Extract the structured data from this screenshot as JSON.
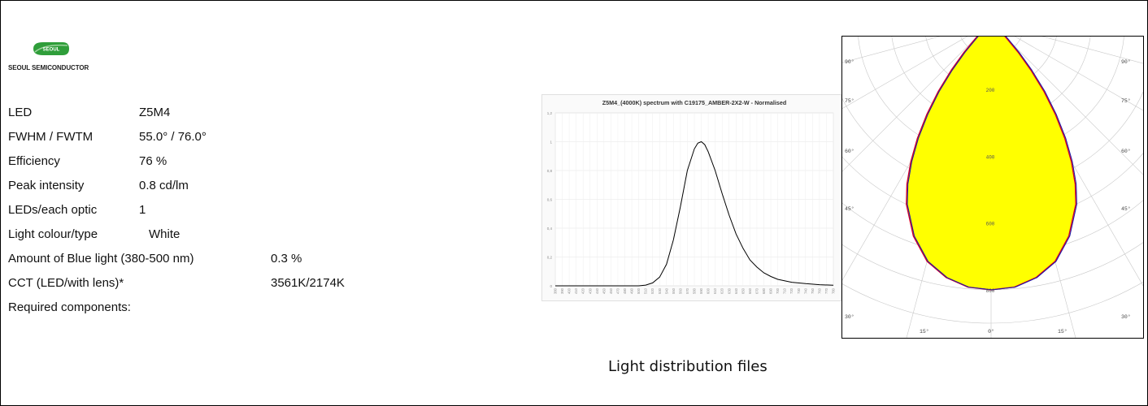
{
  "logo": {
    "badge": "SEOUL",
    "company": "SEOUL SEMICONDUCTOR",
    "color": "#2f9e3a"
  },
  "specs": [
    {
      "label": "LED",
      "value": "Z5M4"
    },
    {
      "label": "FWHM / FWTM",
      "value": "55.0° / 76.0°"
    },
    {
      "label": "Efficiency",
      "value": "76 %"
    },
    {
      "label": "Peak intensity",
      "value": "0.8 cd/lm"
    },
    {
      "label": "LEDs/each optic",
      "value": "1"
    },
    {
      "label": "Light colour/type",
      "value": "White"
    },
    {
      "label": "Amount of Blue light (380-500 nm)",
      "value": "0.3 %"
    },
    {
      "label": "CCT (LED/with lens)*",
      "value": "3561K/2174K"
    },
    {
      "label": "Required components:",
      "value": ""
    }
  ],
  "caption": "Light distribution files",
  "chart_data": [
    {
      "type": "line",
      "title": "Z5M4_(4000K) spectrum with C19175_AMBER-2X2-W - Normalised",
      "xlabel": "",
      "ylabel": "",
      "xlim": [
        380,
        780
      ],
      "ylim": [
        0,
        1.2
      ],
      "yticks": [
        "0",
        "0,2",
        "0,4",
        "0,6",
        "0,8",
        "1",
        "1,2"
      ],
      "xticks": [
        "380",
        "390",
        "400",
        "410",
        "420",
        "430",
        "440",
        "450",
        "460",
        "470",
        "480",
        "490",
        "500",
        "510",
        "520",
        "530",
        "540",
        "550",
        "560",
        "570",
        "580",
        "590",
        "600",
        "610",
        "620",
        "630",
        "640",
        "650",
        "660",
        "670",
        "680",
        "690",
        "700",
        "710",
        "720",
        "730",
        "740",
        "750",
        "760",
        "770",
        "780"
      ],
      "grid": true,
      "line_color": "#000000",
      "series": [
        {
          "x": [
            380,
            400,
            420,
            440,
            460,
            480,
            500,
            510,
            520,
            530,
            540,
            550,
            560,
            570,
            580,
            585,
            590,
            595,
            600,
            610,
            620,
            630,
            640,
            650,
            660,
            670,
            680,
            690,
            700,
            720,
            740,
            760,
            780
          ],
          "values": [
            0,
            0,
            0,
            0,
            0,
            0,
            0,
            0.005,
            0.02,
            0.06,
            0.15,
            0.32,
            0.55,
            0.8,
            0.95,
            0.99,
            1.0,
            0.98,
            0.93,
            0.8,
            0.64,
            0.49,
            0.36,
            0.26,
            0.18,
            0.13,
            0.09,
            0.065,
            0.045,
            0.025,
            0.015,
            0.008,
            0.004
          ]
        }
      ]
    },
    {
      "type": "polar",
      "title": "",
      "angle_labels": [
        "90°",
        "75°",
        "60°",
        "45°",
        "30°",
        "15°",
        "0°",
        "15°",
        "30°",
        "45°",
        "60°",
        "75°",
        "90°"
      ],
      "radial_ticks": [
        200,
        400,
        600,
        800
      ],
      "rmax": 900,
      "fill_color": "#ffff00",
      "outline_colors": [
        "#d4002a",
        "#1a1aa6"
      ],
      "series": [
        {
          "angles": [
            0,
            5,
            10,
            15,
            20,
            25,
            27.5,
            30,
            32.5,
            35,
            37.5,
            40,
            42.5,
            45,
            50,
            55,
            60
          ],
          "values": [
            800,
            795,
            775,
            740,
            680,
            600,
            545,
            480,
            410,
            335,
            260,
            185,
            120,
            65,
            20,
            5,
            0
          ]
        }
      ]
    }
  ]
}
